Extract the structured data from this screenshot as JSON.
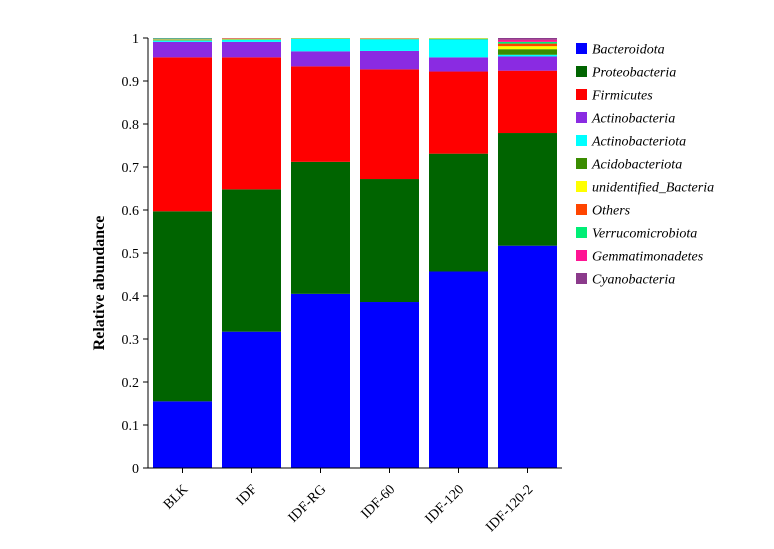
{
  "chart_data": {
    "type": "bar",
    "stacked": true,
    "xlabel": "",
    "ylabel": "Relative abundance",
    "ylim": [
      0,
      1
    ],
    "yticks": [
      0,
      0.1,
      0.2,
      0.3,
      0.4,
      0.5,
      0.6,
      0.7,
      0.8,
      0.9,
      1
    ],
    "ytick_labels": [
      "0",
      "0.1",
      "0.2",
      "0.3",
      "0.4",
      "0.5",
      "0.6",
      "0.7",
      "0.8",
      "0.9",
      "1"
    ],
    "grid": false,
    "legend_position": "right",
    "categories": [
      "BLK",
      "IDF",
      "IDF-RG",
      "IDF-60",
      "IDF-120",
      "IDF-120-2"
    ],
    "series": [
      {
        "name": "Bacteroidota",
        "color": "#0000FF",
        "values": [
          0.155,
          0.317,
          0.405,
          0.386,
          0.457,
          0.517
        ]
      },
      {
        "name": "Proteobacteria",
        "color": "#006400",
        "values": [
          0.442,
          0.331,
          0.307,
          0.286,
          0.274,
          0.262
        ]
      },
      {
        "name": "Firmicutes",
        "color": "#FF0000",
        "values": [
          0.358,
          0.307,
          0.222,
          0.255,
          0.191,
          0.145
        ]
      },
      {
        "name": "Actinobacteria",
        "color": "#8A2BE2",
        "values": [
          0.036,
          0.036,
          0.035,
          0.043,
          0.033,
          0.033
        ]
      },
      {
        "name": "Actinobacteriota",
        "color": "#00FFFF",
        "values": [
          0.003,
          0.005,
          0.029,
          0.027,
          0.042,
          0.004
        ]
      },
      {
        "name": "Acidobacteriota",
        "color": "#3A8C00",
        "values": [
          0.001,
          0.001,
          0.0005,
          0.0005,
          0.001,
          0.013
        ]
      },
      {
        "name": "unidentified_Bacteria",
        "color": "#FFFF00",
        "values": [
          0.001,
          0.001,
          0.0005,
          0.001,
          0.001,
          0.007
        ]
      },
      {
        "name": "Others",
        "color": "#FF4500",
        "values": [
          0.001,
          0.001,
          0.0005,
          0.0005,
          0.0005,
          0.006
        ]
      },
      {
        "name": "Verrucomicrobiota",
        "color": "#00EE76",
        "values": [
          0.002,
          0.0005,
          0.0005,
          0.0005,
          0.0005,
          0.004
        ]
      },
      {
        "name": "Gemmatimonadetes",
        "color": "#FF1493",
        "values": [
          0.0005,
          0.0005,
          0.0005,
          0.0005,
          0.0005,
          0.005
        ]
      },
      {
        "name": "Cyanobacteria",
        "color": "#8B3A8B",
        "values": [
          0.0005,
          0.0005,
          0.0005,
          0.0005,
          0.0005,
          0.004
        ]
      }
    ]
  }
}
